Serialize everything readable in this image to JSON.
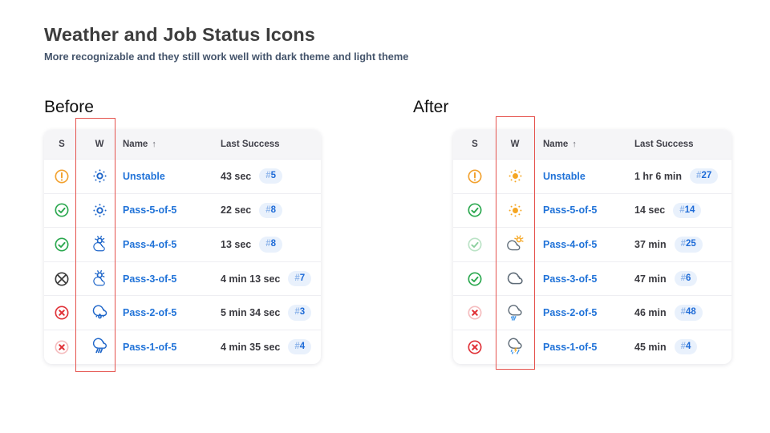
{
  "slide": {
    "title": "Weather and Job Status Icons",
    "subtitle": "More recognizable and they still work well with dark theme and light theme"
  },
  "before": {
    "label": "Before",
    "columns": {
      "s": "S",
      "w": "W",
      "name": "Name",
      "sort": "↑",
      "last_success": "Last Success"
    },
    "rows": [
      {
        "status": "unstable",
        "weather": "sun-blue",
        "name": "Unstable",
        "duration": "43 sec",
        "build": "#5"
      },
      {
        "status": "success",
        "weather": "sun-blue",
        "name": "Pass-5-of-5",
        "duration": "22 sec",
        "build": "#8"
      },
      {
        "status": "success",
        "weather": "cloud-sun-blue",
        "name": "Pass-4-of-5",
        "duration": "13 sec",
        "build": "#8"
      },
      {
        "status": "aborted",
        "weather": "cloud-sun-blue",
        "name": "Pass-3-of-5",
        "duration": "4 min 13 sec",
        "build": "#7"
      },
      {
        "status": "failed",
        "weather": "cloud-raindrop-blue",
        "name": "Pass-2-of-5",
        "duration": "5 min 34 sec",
        "build": "#3"
      },
      {
        "status": "failed-faded",
        "weather": "cloud-rain-blue",
        "name": "Pass-1-of-5",
        "duration": "4 min 35 sec",
        "build": "#4"
      }
    ]
  },
  "after": {
    "label": "After",
    "columns": {
      "s": "S",
      "w": "W",
      "name": "Name",
      "sort": "↑",
      "last_success": "Last Success"
    },
    "rows": [
      {
        "status": "unstable",
        "weather": "sun",
        "name": "Unstable",
        "duration": "1 hr 6 min",
        "build": "#27"
      },
      {
        "status": "success",
        "weather": "sun",
        "name": "Pass-5-of-5",
        "duration": "14 sec",
        "build": "#14"
      },
      {
        "status": "success-faded",
        "weather": "cloud-sun",
        "name": "Pass-4-of-5",
        "duration": "37 min",
        "build": "#25"
      },
      {
        "status": "success",
        "weather": "cloud",
        "name": "Pass-3-of-5",
        "duration": "47 min",
        "build": "#6"
      },
      {
        "status": "failed-faded",
        "weather": "cloud-drizzle",
        "name": "Pass-2-of-5",
        "duration": "46 min",
        "build": "#48"
      },
      {
        "status": "failed",
        "weather": "cloud-storm",
        "name": "Pass-1-of-5",
        "duration": "45 min",
        "build": "#4"
      }
    ]
  },
  "colors": {
    "title_text": "#3d3d3d",
    "subtitle_text": "#44546b",
    "link": "#2173d8",
    "duration_text": "#3a3a40",
    "badge_bg": "#e9f1fc",
    "badge_hash": "#8fb5ea",
    "badge_number": "#1e6bd7",
    "header_bg": "#f5f5f7",
    "header_text": "#41414a",
    "row_divider": "#eeeef2",
    "table_bg": "#ffffff",
    "highlight_box": "#e5534e",
    "status_orange": "#f2a230",
    "status_green": "#2ba84f",
    "status_red": "#e03238",
    "status_aborted": "#3b3b3b",
    "weather_blue": "#1f66c9",
    "weather_gray": "#5e6b77",
    "weather_orange": "#f5a623",
    "weather_rain_blue": "#4597e8",
    "weather_lightning": "#f2a71f"
  }
}
